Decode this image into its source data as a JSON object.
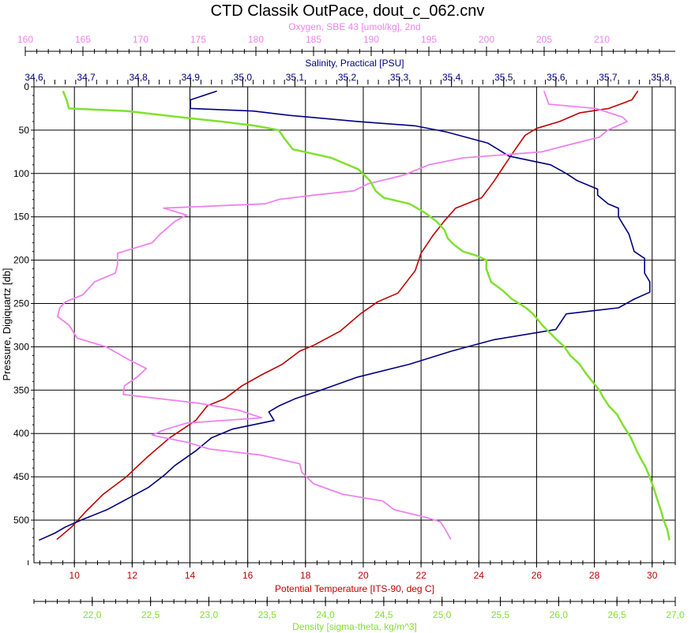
{
  "chart_data": {
    "type": "line",
    "title": "CTD Classik OutPace, dout_c_062.cnv",
    "y_axis": {
      "label": "Pressure, Digiquartz [db]",
      "range": [
        0,
        550
      ],
      "inverted": true,
      "ticks": [
        0,
        50,
        100,
        150,
        200,
        250,
        300,
        350,
        400,
        450,
        500
      ],
      "tick_labels": [
        "0",
        "50",
        "100",
        "150",
        "200",
        "250",
        "300",
        "350",
        "400",
        "450",
        "500"
      ]
    },
    "x_axes": [
      {
        "key": "oxygen",
        "label": "Oxygen, SBE 43 [umol/kg], 2nd",
        "color": "#ee82ee",
        "position": "top-outer",
        "range": [
          160,
          215
        ],
        "ticks": [
          160,
          165,
          170,
          175,
          180,
          185,
          190,
          195,
          200,
          205,
          210
        ],
        "tick_labels": [
          "160",
          "165",
          "170",
          "175",
          "180",
          "185",
          "190",
          "195",
          "200",
          "205",
          "210"
        ]
      },
      {
        "key": "salinity",
        "label": "Salinity, Practical [PSU]",
        "color": "#000080",
        "position": "top-inner",
        "range": [
          34.6,
          35.8
        ],
        "ticks": [
          34.6,
          34.7,
          34.8,
          34.9,
          35.0,
          35.1,
          35.2,
          35.3,
          35.4,
          35.5,
          35.6,
          35.7,
          35.8
        ],
        "tick_labels": [
          "34,6",
          "34,7",
          "34,8",
          "34,9",
          "35,0",
          "35,1",
          "35,2",
          "35,3",
          "35,4",
          "35,5",
          "35,6",
          "35,7",
          "35,8"
        ]
      },
      {
        "key": "temperature",
        "label": "Potential Temperature [ITS-90, deg C]",
        "color": "#c00000",
        "position": "bottom-inner",
        "range": [
          8.6,
          30.8
        ],
        "ticks": [
          10,
          12,
          14,
          16,
          18,
          20,
          22,
          24,
          26,
          28,
          30
        ],
        "tick_labels": [
          "10",
          "12",
          "14",
          "16",
          "18",
          "20",
          "22",
          "24",
          "26",
          "28",
          "30"
        ]
      },
      {
        "key": "density",
        "label": "Density [sigma-theta, kg/m^3]",
        "color": "#80e030",
        "position": "bottom-outer",
        "range": [
          21.5,
          27.0
        ],
        "ticks": [
          22.0,
          22.5,
          23.0,
          23.5,
          24.0,
          24.5,
          25.0,
          25.5,
          26.0,
          26.5,
          27.0
        ],
        "tick_labels": [
          "22,0",
          "22,5",
          "23,0",
          "23,5",
          "24,0",
          "24,5",
          "25,0",
          "25,5",
          "26,0",
          "26,5",
          "27,0"
        ]
      }
    ],
    "grid": true,
    "series": [
      {
        "axis": "temperature",
        "color": "#c00000",
        "points": [
          [
            29.5,
            5
          ],
          [
            29.3,
            15
          ],
          [
            28.5,
            25
          ],
          [
            27.5,
            30
          ],
          [
            26.8,
            40
          ],
          [
            26.0,
            48
          ],
          [
            25.6,
            56
          ],
          [
            25.2,
            75
          ],
          [
            24.9,
            90
          ],
          [
            24.5,
            110
          ],
          [
            24.1,
            128
          ],
          [
            23.2,
            140
          ],
          [
            22.8,
            155
          ],
          [
            22.4,
            172
          ],
          [
            22.0,
            192
          ],
          [
            21.8,
            212
          ],
          [
            21.2,
            238
          ],
          [
            20.5,
            248
          ],
          [
            19.9,
            262
          ],
          [
            19.2,
            282
          ],
          [
            18.3,
            298
          ],
          [
            17.8,
            305
          ],
          [
            17.2,
            320
          ],
          [
            16.5,
            332
          ],
          [
            15.8,
            345
          ],
          [
            15.2,
            360
          ],
          [
            14.6,
            368
          ],
          [
            14.2,
            385
          ],
          [
            13.3,
            405
          ],
          [
            12.5,
            428
          ],
          [
            11.8,
            450
          ],
          [
            11.0,
            470
          ],
          [
            10.4,
            490
          ],
          [
            9.9,
            508
          ],
          [
            9.4,
            522
          ]
        ]
      },
      {
        "axis": "salinity",
        "color": "#000080",
        "points": [
          [
            34.95,
            5
          ],
          [
            34.9,
            15
          ],
          [
            34.9,
            25
          ],
          [
            35.02,
            28
          ],
          [
            35.09,
            33
          ],
          [
            35.22,
            40
          ],
          [
            35.33,
            45
          ],
          [
            35.39,
            52
          ],
          [
            35.47,
            65
          ],
          [
            35.51,
            80
          ],
          [
            35.59,
            90
          ],
          [
            35.62,
            100
          ],
          [
            35.64,
            108
          ],
          [
            35.68,
            118
          ],
          [
            35.68,
            125
          ],
          [
            35.7,
            135
          ],
          [
            35.72,
            140
          ],
          [
            35.72,
            150
          ],
          [
            35.73,
            160
          ],
          [
            35.74,
            170
          ],
          [
            35.75,
            190
          ],
          [
            35.77,
            198
          ],
          [
            35.77,
            215
          ],
          [
            35.78,
            225
          ],
          [
            35.78,
            237
          ],
          [
            35.75,
            245
          ],
          [
            35.72,
            255
          ],
          [
            35.62,
            262
          ],
          [
            35.6,
            280
          ],
          [
            35.48,
            292
          ],
          [
            35.4,
            305
          ],
          [
            35.32,
            320
          ],
          [
            35.22,
            335
          ],
          [
            35.15,
            350
          ],
          [
            35.1,
            360
          ],
          [
            35.07,
            368
          ],
          [
            35.05,
            375
          ],
          [
            35.06,
            385
          ],
          [
            34.98,
            395
          ],
          [
            34.94,
            405
          ],
          [
            34.91,
            420
          ],
          [
            34.87,
            437
          ],
          [
            34.85,
            448
          ],
          [
            34.82,
            462
          ],
          [
            34.78,
            475
          ],
          [
            34.74,
            488
          ],
          [
            34.69,
            500
          ],
          [
            34.66,
            508
          ],
          [
            34.64,
            515
          ],
          [
            34.61,
            523
          ]
        ]
      },
      {
        "axis": "oxygen",
        "color": "#ee82ee",
        "points": [
          [
            205.0,
            5
          ],
          [
            205.4,
            20
          ],
          [
            209.5,
            25
          ],
          [
            211.8,
            35
          ],
          [
            212.2,
            40
          ],
          [
            210.5,
            50
          ],
          [
            209.8,
            58
          ],
          [
            206.8,
            68
          ],
          [
            204.8,
            75
          ],
          [
            198.0,
            82
          ],
          [
            195.0,
            90
          ],
          [
            192.8,
            102
          ],
          [
            189.7,
            112
          ],
          [
            188.5,
            120
          ],
          [
            185.0,
            125
          ],
          [
            182.0,
            130
          ],
          [
            180.8,
            135
          ],
          [
            172.0,
            140
          ],
          [
            174.0,
            148
          ],
          [
            173.0,
            155
          ],
          [
            171.7,
            170
          ],
          [
            171.0,
            180
          ],
          [
            168.0,
            192
          ],
          [
            168.0,
            205
          ],
          [
            167.8,
            215
          ],
          [
            166.0,
            225
          ],
          [
            165.0,
            240
          ],
          [
            163.5,
            248
          ],
          [
            163.0,
            255
          ],
          [
            162.8,
            265
          ],
          [
            163.8,
            275
          ],
          [
            164.5,
            290
          ],
          [
            167.0,
            300
          ],
          [
            169.0,
            315
          ],
          [
            170.5,
            325
          ],
          [
            169.7,
            335
          ],
          [
            168.6,
            345
          ],
          [
            168.5,
            355
          ],
          [
            175.0,
            365
          ],
          [
            178.5,
            373
          ],
          [
            180.5,
            382
          ],
          [
            174.0,
            388
          ],
          [
            172.0,
            396
          ],
          [
            171.0,
            402
          ],
          [
            174.0,
            410
          ],
          [
            176.0,
            418
          ],
          [
            180.5,
            425
          ],
          [
            183.8,
            435
          ],
          [
            184.0,
            445
          ],
          [
            185.0,
            458
          ],
          [
            187.5,
            470
          ],
          [
            191.0,
            478
          ],
          [
            192.0,
            488
          ],
          [
            194.8,
            497
          ],
          [
            196.0,
            502
          ],
          [
            196.4,
            510
          ],
          [
            196.9,
            522
          ]
        ]
      },
      {
        "axis": "density",
        "color": "#80e030",
        "points": [
          [
            21.75,
            5
          ],
          [
            21.78,
            15
          ],
          [
            21.8,
            25
          ],
          [
            22.3,
            28
          ],
          [
            22.75,
            35
          ],
          [
            23.1,
            40
          ],
          [
            23.4,
            45
          ],
          [
            23.6,
            50
          ],
          [
            23.65,
            60
          ],
          [
            23.72,
            72
          ],
          [
            24.05,
            82
          ],
          [
            24.28,
            95
          ],
          [
            24.38,
            108
          ],
          [
            24.43,
            120
          ],
          [
            24.5,
            128
          ],
          [
            24.72,
            135
          ],
          [
            24.85,
            145
          ],
          [
            24.95,
            155
          ],
          [
            25.02,
            165
          ],
          [
            25.05,
            175
          ],
          [
            25.1,
            182
          ],
          [
            25.18,
            190
          ],
          [
            25.3,
            195
          ],
          [
            25.38,
            200
          ],
          [
            25.38,
            210
          ],
          [
            25.42,
            225
          ],
          [
            25.52,
            235
          ],
          [
            25.6,
            245
          ],
          [
            25.72,
            255
          ],
          [
            25.78,
            262
          ],
          [
            25.86,
            275
          ],
          [
            25.97,
            290
          ],
          [
            26.05,
            300
          ],
          [
            26.1,
            310
          ],
          [
            26.18,
            320
          ],
          [
            26.23,
            330
          ],
          [
            26.3,
            342
          ],
          [
            26.35,
            350
          ],
          [
            26.38,
            358
          ],
          [
            26.43,
            368
          ],
          [
            26.5,
            378
          ],
          [
            26.55,
            390
          ],
          [
            26.62,
            405
          ],
          [
            26.67,
            420
          ],
          [
            26.7,
            428
          ],
          [
            26.75,
            440
          ],
          [
            26.78,
            450
          ],
          [
            26.82,
            465
          ],
          [
            26.85,
            478
          ],
          [
            26.88,
            490
          ],
          [
            26.9,
            500
          ],
          [
            26.93,
            510
          ],
          [
            26.95,
            523
          ]
        ]
      }
    ]
  }
}
